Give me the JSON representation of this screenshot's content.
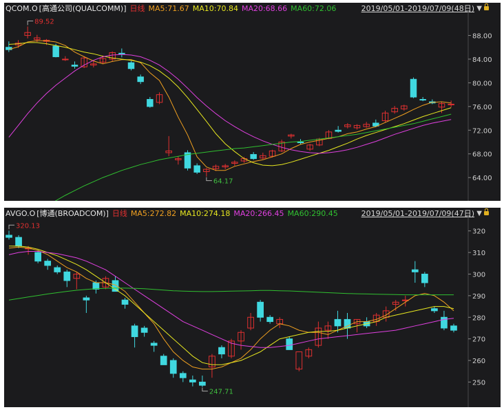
{
  "charts": [
    {
      "ticker": "QCOM.O",
      "company": "[高通公司(QUALCOMM)]",
      "period_label": "日线",
      "ma": [
        {
          "label": "MA5:71.67",
          "color": "#f0a020"
        },
        {
          "label": "MA10:70.84",
          "color": "#e8e820"
        },
        {
          "label": "MA20:68.66",
          "color": "#e040e0"
        },
        {
          "label": "MA60:72.06",
          "color": "#30c030"
        }
      ],
      "date_range": "2019/05/01-2019/07/09(48日)",
      "range_arrow": "▼",
      "high_label": "89.52",
      "low_label": "64.17",
      "y_ticks": [
        "88.00",
        "84.00",
        "80.00",
        "76.00",
        "72.00",
        "68.00",
        "64.00"
      ]
    },
    {
      "ticker": "AVGO.O",
      "company": "[博通(BROADCOM)]",
      "period_label": "日线",
      "ma": [
        {
          "label": "MA5:272.82",
          "color": "#f0a020"
        },
        {
          "label": "MA10:274.18",
          "color": "#e8e820"
        },
        {
          "label": "MA20:266.45",
          "color": "#e040e0"
        },
        {
          "label": "MA60:290.45",
          "color": "#30c030"
        }
      ],
      "date_range": "2019/05/01-2019/07/09(47日)",
      "range_arrow": "▼",
      "high_label": "320.13",
      "low_label": "247.71",
      "y_ticks": [
        "320",
        "310",
        "300",
        "290",
        "280",
        "270",
        "260",
        "250"
      ]
    }
  ],
  "colors": {
    "up": "#e03030",
    "down": "#40d8e0",
    "background": "#1b1b1d",
    "axis_text": "#d0d0d0",
    "high_low_text_high": "#e03030",
    "high_low_text_low": "#40c040"
  },
  "chart_data": [
    {
      "type": "candlestick",
      "title": "QCOM.O [高通公司(QUALCOMM)] 日线",
      "x_range": "2019/05/01-2019/07/09",
      "ylim": [
        60.3,
        91.2
      ],
      "series_ohlc": [
        [
          86.0,
          87.0,
          85.2,
          85.6
        ],
        [
          86.4,
          87.2,
          85.9,
          86.7
        ],
        [
          88.0,
          89.52,
          87.5,
          88.5
        ],
        [
          87.3,
          88.1,
          86.9,
          87.6
        ],
        [
          87.0,
          87.4,
          86.4,
          87.2
        ],
        [
          86.2,
          86.6,
          84.3,
          84.4
        ],
        [
          84.0,
          84.5,
          83.7,
          84.0
        ],
        [
          83.0,
          83.6,
          82.4,
          82.8
        ],
        [
          82.7,
          84.5,
          82.5,
          84.2
        ],
        [
          83.0,
          83.8,
          82.6,
          83.2
        ],
        [
          83.5,
          84.6,
          83.2,
          84.1
        ],
        [
          84.0,
          85.3,
          83.6,
          85.1
        ],
        [
          85.0,
          85.8,
          84.3,
          84.9
        ],
        [
          83.4,
          83.7,
          82.1,
          82.4
        ],
        [
          81.0,
          81.4,
          79.8,
          80.2
        ],
        [
          77.2,
          77.6,
          75.8,
          76.0
        ],
        [
          76.7,
          78.4,
          76.4,
          78.0
        ],
        [
          68.2,
          71.0,
          67.6,
          68.5
        ],
        [
          67.0,
          67.6,
          66.2,
          67.2
        ],
        [
          68.2,
          68.6,
          65.2,
          65.6
        ],
        [
          66.0,
          66.4,
          64.6,
          64.9
        ],
        [
          65.0,
          65.6,
          64.17,
          65.4
        ],
        [
          65.5,
          66.2,
          65.1,
          65.9
        ],
        [
          65.8,
          66.3,
          65.4,
          66.0
        ],
        [
          66.4,
          66.9,
          66.0,
          66.6
        ],
        [
          66.8,
          67.5,
          66.5,
          67.2
        ],
        [
          67.9,
          68.3,
          67.0,
          67.2
        ],
        [
          67.3,
          68.2,
          67.1,
          67.7
        ],
        [
          67.6,
          68.7,
          67.4,
          68.5
        ],
        [
          68.5,
          70.4,
          68.3,
          70.0
        ],
        [
          71.0,
          71.4,
          70.6,
          71.2
        ],
        [
          70.0,
          70.5,
          69.6,
          69.9
        ],
        [
          68.8,
          69.7,
          68.5,
          69.5
        ],
        [
          69.5,
          70.7,
          69.3,
          70.5
        ],
        [
          70.6,
          72.0,
          70.5,
          71.7
        ],
        [
          72.0,
          72.7,
          71.6,
          71.8
        ],
        [
          72.6,
          73.2,
          72.3,
          72.9
        ],
        [
          72.4,
          73.0,
          72.1,
          72.8
        ],
        [
          72.6,
          73.4,
          72.4,
          73.0
        ],
        [
          73.2,
          73.8,
          72.5,
          72.7
        ],
        [
          73.6,
          75.3,
          73.3,
          74.9
        ],
        [
          75.1,
          76.1,
          74.8,
          75.7
        ],
        [
          75.6,
          76.3,
          75.3,
          76.1
        ],
        [
          80.6,
          80.9,
          77.4,
          77.6
        ],
        [
          77.2,
          77.6,
          76.9,
          77.1
        ],
        [
          76.8,
          77.2,
          76.4,
          76.6
        ],
        [
          75.9,
          76.8,
          74.9,
          76.5
        ],
        [
          76.4,
          77.0,
          75.9,
          76.4
        ]
      ],
      "series_ma": [
        {
          "name": "MA5",
          "values": [
            85.6,
            86.1,
            86.9,
            87.1,
            87.1,
            86.9,
            86.3,
            85.2,
            84.4,
            83.7,
            83.2,
            83.6,
            83.9,
            83.9,
            83.4,
            81.7,
            80.4,
            77.6,
            74.2,
            71.2,
            67.5,
            65.8,
            65.2,
            65.2,
            65.9,
            66.3,
            66.7,
            67.0,
            67.5,
            68.0,
            68.9,
            69.6,
            70.0,
            70.3,
            70.6,
            70.9,
            71.4,
            71.7,
            72.2,
            72.6,
            73.3,
            74.0,
            74.7,
            75.5,
            76.2,
            76.7,
            76.8,
            76.6
          ]
        },
        {
          "name": "MA10",
          "values": [
            86.5,
            86.6,
            86.8,
            86.8,
            86.6,
            86.3,
            86.0,
            85.6,
            85.2,
            84.9,
            84.5,
            84.2,
            84.0,
            83.8,
            83.5,
            82.9,
            82.0,
            80.8,
            79.3,
            77.5,
            75.5,
            73.5,
            71.4,
            69.7,
            68.4,
            67.2,
            66.5,
            66.1,
            66.0,
            66.2,
            66.6,
            67.1,
            67.6,
            68.1,
            68.6,
            69.2,
            69.8,
            70.5,
            71.1,
            71.6,
            72.1,
            72.6,
            73.1,
            73.7,
            74.3,
            74.8,
            75.3,
            75.8
          ]
        },
        {
          "name": "MA20",
          "values": [
            70.8,
            72.8,
            74.8,
            76.6,
            78.2,
            79.6,
            80.8,
            82.0,
            83.0,
            83.8,
            84.4,
            84.7,
            84.8,
            84.7,
            84.4,
            83.8,
            83.0,
            81.9,
            80.6,
            79.1,
            77.5,
            76.1,
            74.8,
            73.6,
            72.6,
            71.7,
            70.9,
            70.2,
            69.6,
            69.1,
            68.7,
            68.4,
            68.2,
            68.1,
            68.2,
            68.4,
            68.7,
            69.1,
            69.6,
            70.1,
            70.7,
            71.3,
            71.8,
            72.3,
            72.8,
            73.2,
            73.5,
            73.8
          ]
        },
        {
          "name": "MA60",
          "values": [
            54.0,
            55.5,
            56.8,
            58.0,
            59.1,
            60.1,
            61.0,
            61.8,
            62.6,
            63.3,
            64.0,
            64.6,
            65.2,
            65.7,
            66.2,
            66.6,
            67.0,
            67.3,
            67.6,
            67.9,
            68.1,
            68.3,
            68.5,
            68.7,
            68.9,
            69.0,
            69.2,
            69.4,
            69.6,
            69.8,
            70.0,
            70.1,
            70.3,
            70.5,
            70.7,
            70.9,
            71.1,
            71.3,
            71.6,
            71.9,
            72.2,
            72.5,
            72.8,
            73.1,
            73.5,
            73.9,
            74.3,
            74.7
          ]
        }
      ],
      "high": 89.52,
      "low": 64.17
    },
    {
      "type": "candlestick",
      "title": "AVGO.O [博通(BROADCOM)] 日线",
      "x_range": "2019/05/01-2019/07/09",
      "ylim": [
        239,
        325
      ],
      "series_ohlc": [
        [
          318.0,
          320.13,
          316.0,
          317.0
        ],
        [
          317.0,
          318.0,
          312.0,
          313.0
        ],
        [
          312.0,
          313.0,
          309.0,
          312.0
        ],
        [
          310.0,
          311.0,
          305.0,
          306.0
        ],
        [
          306.0,
          307.0,
          302.0,
          304.0
        ],
        [
          303.0,
          304.0,
          300.0,
          301.0
        ],
        [
          301.0,
          302.0,
          294.0,
          297.0
        ],
        [
          298.0,
          301.0,
          293.0,
          300.0
        ],
        [
          289.0,
          290.0,
          282.0,
          288.0
        ],
        [
          296.0,
          297.0,
          291.0,
          293.0
        ],
        [
          294.0,
          299.0,
          293.0,
          298.0
        ],
        [
          297.0,
          299.0,
          293.0,
          292.0
        ],
        [
          288.0,
          289.0,
          284.0,
          286.0
        ],
        [
          276.0,
          277.0,
          266.0,
          271.0
        ],
        [
          275.0,
          276.0,
          271.0,
          273.0
        ],
        [
          268.0,
          269.0,
          264.0,
          267.0
        ],
        [
          262.0,
          263.0,
          258.0,
          258.0
        ],
        [
          260.0,
          261.0,
          252.0,
          254.0
        ],
        [
          254.0,
          255.0,
          250.0,
          252.0
        ],
        [
          251.0,
          253.0,
          248.0,
          250.0
        ],
        [
          250.0,
          253.0,
          247.71,
          248.5
        ],
        [
          257.0,
          263.0,
          252.0,
          262.0
        ],
        [
          266.0,
          267.0,
          261.0,
          263.0
        ],
        [
          262.0,
          270.0,
          261.0,
          269.0
        ],
        [
          269.0,
          274.0,
          265.0,
          273.0
        ],
        [
          275.0,
          282.0,
          274.0,
          280.0
        ],
        [
          287.0,
          288.0,
          278.0,
          280.0
        ],
        [
          280.0,
          281.0,
          277.0,
          278.0
        ],
        [
          277.0,
          280.0,
          275.0,
          279.0
        ],
        [
          270.0,
          271.0,
          265.0,
          265.0
        ],
        [
          256.0,
          257.0,
          255.0,
          264.0
        ],
        [
          262.0,
          266.0,
          261.0,
          265.0
        ],
        [
          267.0,
          278.0,
          266.0,
          275.0
        ],
        [
          274.0,
          278.0,
          270.0,
          276.0
        ],
        [
          279.0,
          283.0,
          273.0,
          276.0
        ],
        [
          279.0,
          282.0,
          270.0,
          275.0
        ],
        [
          277.0,
          279.0,
          273.0,
          279.0
        ],
        [
          278.0,
          280.0,
          275.0,
          276.0
        ],
        [
          278.0,
          282.0,
          276.0,
          281.0
        ],
        [
          280.0,
          285.0,
          278.0,
          283.0
        ],
        [
          286.0,
          288.0,
          283.0,
          287.0
        ],
        [
          288.0,
          290.0,
          285.0,
          288.0
        ],
        [
          302.0,
          306.0,
          296.0,
          301.0
        ],
        [
          300.0,
          301.0,
          294.0,
          296.0
        ],
        [
          284.0,
          285.0,
          282.0,
          283.0
        ],
        [
          280.0,
          283.0,
          274.0,
          275.0
        ],
        [
          276.0,
          277.0,
          273.0,
          274.0
        ]
      ],
      "series_ma": [
        {
          "name": "MA5",
          "values": [
            312.0,
            312.5,
            312.0,
            311.0,
            309.0,
            306.0,
            303.0,
            301.0,
            298.0,
            296.0,
            296.0,
            295.0,
            292.0,
            287.0,
            282.0,
            277.0,
            270.0,
            264.0,
            260.0,
            257.0,
            256.0,
            256.0,
            257.0,
            259.0,
            261.0,
            265.0,
            270.0,
            274.0,
            277.0,
            276.0,
            274.0,
            273.0,
            273.0,
            272.0,
            274.0,
            276.0,
            278.0,
            278.0,
            279.0,
            281.0,
            284.0,
            287.0,
            290.0,
            291.0,
            290.0,
            287.0,
            283.0
          ]
        },
        {
          "name": "MA10",
          "values": [
            313.0,
            313.0,
            312.5,
            311.5,
            310.0,
            308.5,
            306.5,
            304.5,
            302.0,
            299.0,
            296.0,
            293.0,
            290.0,
            286.0,
            282.0,
            278.0,
            274.0,
            270.0,
            266.0,
            262.0,
            259.0,
            258.0,
            258.0,
            259.0,
            260.0,
            262.0,
            264.0,
            267.0,
            270.0,
            271.0,
            272.0,
            273.0,
            273.5,
            273.5,
            274.0,
            275.0,
            276.0,
            277.0,
            278.0,
            280.0,
            281.0,
            282.0,
            283.0,
            284.0,
            285.0,
            285.0,
            284.0
          ]
        },
        {
          "name": "MA20",
          "values": [
            309.0,
            310.0,
            310.5,
            310.5,
            310.0,
            309.5,
            308.5,
            307.5,
            306.0,
            304.0,
            302.0,
            299.0,
            296.0,
            293.0,
            290.0,
            287.0,
            284.0,
            281.0,
            278.0,
            276.0,
            274.0,
            272.0,
            270.0,
            268.0,
            267.0,
            266.5,
            266.0,
            266.0,
            266.5,
            267.0,
            268.0,
            269.0,
            270.0,
            270.5,
            271.0,
            271.5,
            272.0,
            272.5,
            273.0,
            273.5,
            274.0,
            275.0,
            276.0,
            277.0,
            278.0,
            279.0,
            279.5
          ]
        },
        {
          "name": "MA60",
          "values": [
            288.0,
            288.7,
            289.4,
            290.1,
            290.8,
            291.4,
            292.0,
            292.5,
            292.9,
            293.2,
            293.4,
            293.5,
            293.5,
            293.4,
            293.2,
            292.9,
            292.6,
            292.3,
            292.1,
            292.0,
            291.9,
            291.9,
            292.0,
            292.1,
            292.2,
            292.3,
            292.4,
            292.4,
            292.3,
            292.2,
            292.0,
            291.8,
            291.6,
            291.4,
            291.2,
            291.0,
            290.9,
            290.8,
            290.7,
            290.6,
            290.5,
            290.4,
            290.4,
            290.4,
            290.4,
            290.4,
            290.4
          ]
        }
      ],
      "high": 320.13,
      "low": 247.71
    }
  ]
}
